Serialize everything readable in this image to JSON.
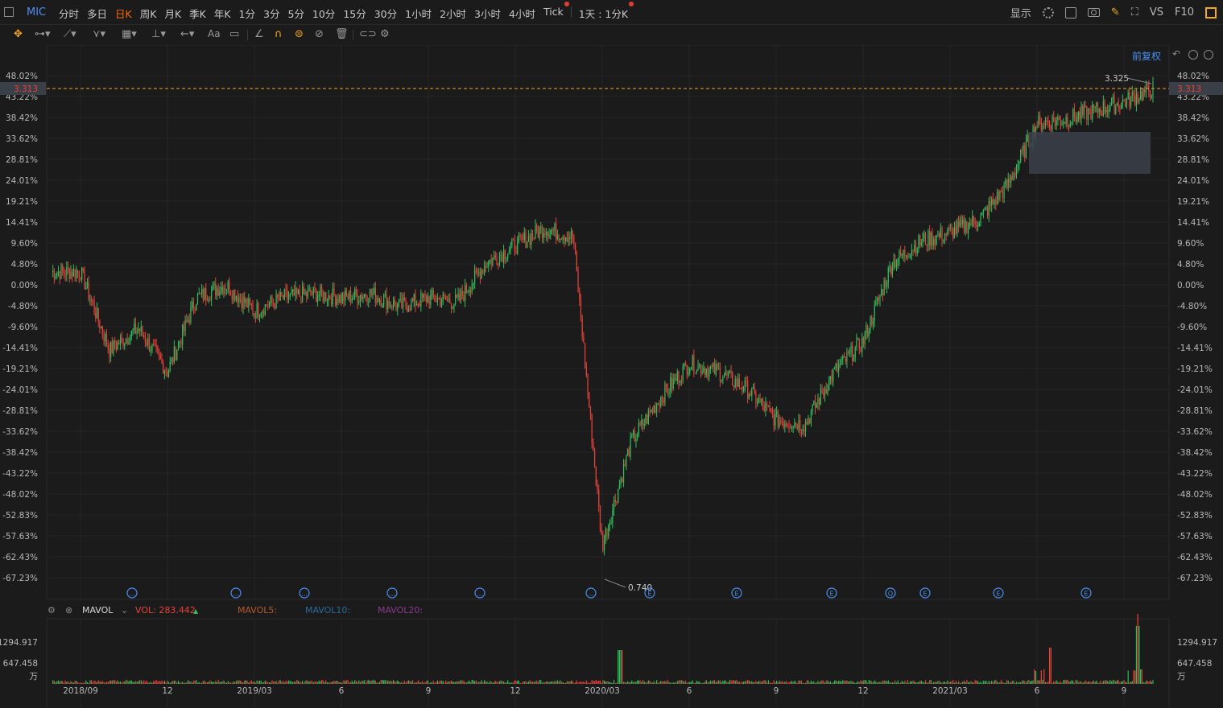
{
  "topbar": {
    "symbol": "MIC",
    "tabs": [
      {
        "label": "分时",
        "active": false
      },
      {
        "label": "多日",
        "active": false
      },
      {
        "label": "日K",
        "active": true
      },
      {
        "label": "周K",
        "active": false
      },
      {
        "label": "月K",
        "active": false
      },
      {
        "label": "季K",
        "active": false
      },
      {
        "label": "年K",
        "active": false
      },
      {
        "label": "1分",
        "active": false
      },
      {
        "label": "3分",
        "active": false
      },
      {
        "label": "5分",
        "active": false
      },
      {
        "label": "10分",
        "active": false
      },
      {
        "label": "15分",
        "active": false
      },
      {
        "label": "30分",
        "active": false
      },
      {
        "label": "1小时",
        "active": false
      },
      {
        "label": "2小时",
        "active": false
      },
      {
        "label": "3小时",
        "active": false
      },
      {
        "label": "4小时",
        "active": false
      },
      {
        "label": "Tick",
        "active": false
      }
    ],
    "multi_day": "1天 : 1分K",
    "display": "显示",
    "vs": "VS",
    "f10": "F10"
  },
  "toolbar": {
    "text_tool": "Aa"
  },
  "chart": {
    "adjust": "前复权",
    "current_price": "3.313",
    "high_label": "3.325",
    "low_label": "0.740",
    "pct_ticks": [
      "48.02%",
      "43.22%",
      "38.42%",
      "33.62%",
      "28.81%",
      "24.01%",
      "19.21%",
      "14.41%",
      "9.60%",
      "4.80%",
      "0.00%",
      "-4.80%",
      "-9.60%",
      "-14.41%",
      "-19.21%",
      "-24.01%",
      "-28.81%",
      "-33.62%",
      "-38.42%",
      "-43.22%",
      "-48.02%",
      "-52.83%",
      "-57.63%",
      "-62.43%",
      "-67.23%"
    ],
    "event_markers": [
      "...",
      "...",
      "...",
      "...",
      "...",
      "...",
      "E",
      "E",
      "E",
      "Q",
      "E",
      "E",
      "E"
    ],
    "colors": {
      "up": "#2fbf5b",
      "down": "#e8433a",
      "price_line": "#f5a623",
      "accent": "#4a8ff3"
    }
  },
  "volume": {
    "indicator": "MAVOL",
    "vol_label": "VOL: 283.442",
    "mavol5": "MAVOL5:",
    "mavol10": "MAVOL10:",
    "mavol20": "MAVOL20:",
    "ticks": [
      "1294.917",
      "647.458",
      "万"
    ],
    "x_ticks": [
      "2018/09",
      "12",
      "2019/03",
      "6",
      "9",
      "12",
      "2020/03",
      "6",
      "9",
      "12",
      "2021/03",
      "6",
      "9"
    ]
  },
  "chart_data": {
    "type": "candlestick",
    "x_range": [
      "2018/08",
      "2021/10"
    ],
    "ylim_pct": [
      -67.23,
      48.02
    ],
    "y_unit": "%",
    "monthly_close_pct": [
      [
        "2018/08",
        3
      ],
      [
        "2018/09",
        3
      ],
      [
        "2018/10",
        -15
      ],
      [
        "2018/11",
        -10
      ],
      [
        "2018/12",
        -20
      ],
      [
        "2019/01",
        -3
      ],
      [
        "2019/02",
        0
      ],
      [
        "2019/03",
        -6
      ],
      [
        "2019/04",
        -3
      ],
      [
        "2019/05",
        -2
      ],
      [
        "2019/06",
        -3
      ],
      [
        "2019/07",
        -2
      ],
      [
        "2019/08",
        -5
      ],
      [
        "2019/09",
        -3
      ],
      [
        "2019/10",
        -4
      ],
      [
        "2019/11",
        5
      ],
      [
        "2019/12",
        9
      ],
      [
        "2020/01",
        13
      ],
      [
        "2020/02",
        11
      ],
      [
        "2020/03",
        -60
      ],
      [
        "2020/04",
        -36
      ],
      [
        "2020/05",
        -26
      ],
      [
        "2020/06",
        -18
      ],
      [
        "2020/07",
        -20
      ],
      [
        "2020/08",
        -24
      ],
      [
        "2020/09",
        -31
      ],
      [
        "2020/10",
        -32
      ],
      [
        "2020/11",
        -20
      ],
      [
        "2020/12",
        -13
      ],
      [
        "2021/01",
        5
      ],
      [
        "2021/02",
        10
      ],
      [
        "2021/03",
        12
      ],
      [
        "2021/04",
        15
      ],
      [
        "2021/05",
        23
      ],
      [
        "2021/06",
        37
      ],
      [
        "2021/07",
        38
      ],
      [
        "2021/08",
        40
      ],
      [
        "2021/09",
        42
      ],
      [
        "2021/10",
        45
      ]
    ]
  }
}
